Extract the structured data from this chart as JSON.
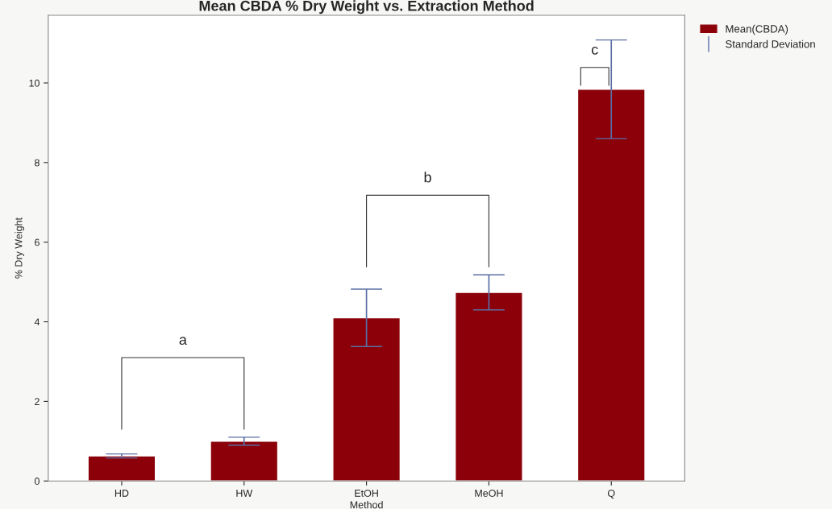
{
  "chart_data": {
    "type": "bar",
    "title": "Mean CBDA % Dry Weight vs. Extraction Method",
    "xlabel": "Method",
    "ylabel": "% Dry Weight",
    "categories": [
      "HD",
      "HW",
      "EtOH",
      "MeOH",
      "Q"
    ],
    "series": [
      {
        "name": "Mean(CBDA)",
        "color": "#8b0009",
        "values": [
          0.63,
          1.0,
          4.1,
          4.74,
          9.84
        ],
        "errors": [
          0.05,
          0.1,
          0.72,
          0.44,
          1.24
        ]
      }
    ],
    "ylim": [
      0,
      11.7
    ],
    "yticks": [
      0,
      2,
      4,
      6,
      8,
      10
    ],
    "grid": false,
    "legend": "right",
    "annotations": [
      "a",
      "b",
      "c",
      "Standard Deviation"
    ]
  }
}
